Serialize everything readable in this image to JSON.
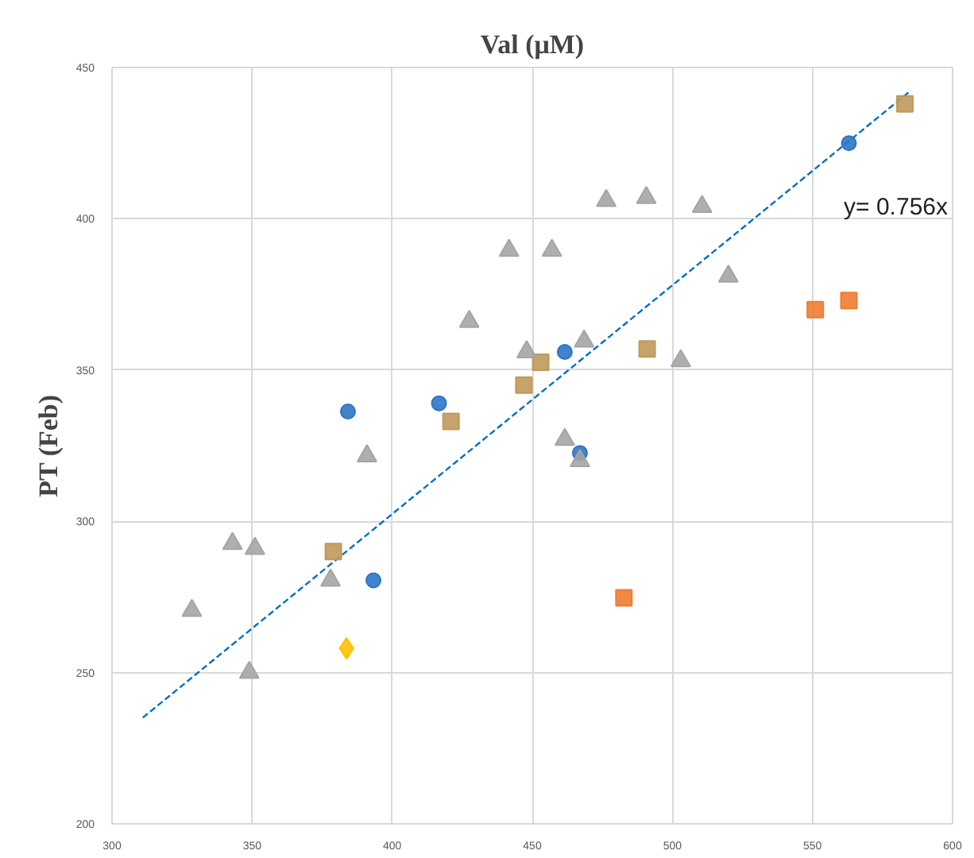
{
  "chart_data": {
    "type": "scatter",
    "title": "Val (μM)",
    "ylabel": "PT (Feb)",
    "xlim": [
      300,
      600
    ],
    "xticks": [
      300,
      350,
      400,
      450,
      500,
      550,
      600
    ],
    "ylim": [
      200,
      450
    ],
    "yticks": [
      200,
      250,
      300,
      350,
      400,
      450
    ],
    "grid": true,
    "series": [
      {
        "color": "#2e75c6",
        "marker": "circle",
        "x": [
          384.2,
          416.7,
          461.6,
          467,
          393.3,
          563
        ],
        "values": [
          336.3,
          339,
          356,
          322.6,
          280.5,
          425
        ]
      },
      {
        "color": "#c0995a",
        "marker": "square",
        "x": [
          379,
          421,
          447,
          453,
          491,
          583
        ],
        "values": [
          290,
          333,
          345,
          352.6,
          357,
          438
        ]
      },
      {
        "color": "#ed7d31",
        "marker": "square",
        "x": [
          482.7,
          551,
          563
        ],
        "values": [
          274.7,
          370,
          373
        ]
      },
      {
        "color": "#a5a5a5",
        "marker": "triangle",
        "x": [
          441.7,
          427.5,
          448,
          476.4,
          490.7,
          510.6,
          457,
          520,
          468.5,
          503,
          461.6,
          467,
          391,
          343,
          351,
          378,
          328.5,
          349
        ],
        "values": [
          389.5,
          366,
          356,
          406,
          407,
          404,
          389.5,
          381,
          359.5,
          353,
          327,
          320,
          321.6,
          292.6,
          291,
          280.5,
          270.5,
          250
        ]
      },
      {
        "color": "#ffc000",
        "marker": "diamond",
        "x": [
          383.7
        ],
        "values": [
          258
        ]
      },
      {
        "type": "line",
        "color": "#0070c0",
        "line_style": "dashed",
        "x": [
          311,
          585
        ],
        "values": [
          235.1,
          442.3
        ]
      }
    ],
    "annotations": [
      "y= 0.756x"
    ]
  }
}
